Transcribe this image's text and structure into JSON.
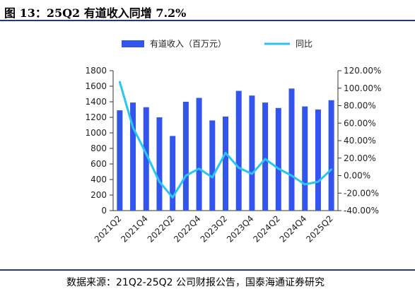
{
  "header": {
    "title": "图 13：25Q2 有道收入同增 7.2%"
  },
  "footer": {
    "source": "数据来源：21Q2-25Q2 公司财报公告，国泰海通证券研究"
  },
  "colors": {
    "bar": "#3355ee",
    "line": "#29c6f4",
    "axis": "#333333",
    "rule": "#1f3b73"
  },
  "chart_data": {
    "type": "bar",
    "categories": [
      "2021Q2",
      "2021Q3",
      "2021Q4",
      "2022Q1",
      "2022Q2",
      "2022Q3",
      "2022Q4",
      "2023Q1",
      "2023Q2",
      "2023Q3",
      "2023Q4",
      "2024Q1",
      "2024Q2",
      "2024Q3",
      "2024Q4",
      "2025Q1",
      "2025Q2"
    ],
    "x_tick_labels": [
      "2021Q2",
      "2021Q4",
      "2022Q2",
      "2022Q4",
      "2023Q2",
      "2023Q4",
      "2024Q2",
      "2024Q4",
      "2025Q2"
    ],
    "series": [
      {
        "name": "有道收入（百万元）",
        "type": "bar",
        "axis": "left",
        "values": [
          1290,
          1390,
          1330,
          1200,
          960,
          1400,
          1450,
          1160,
          1210,
          1540,
          1480,
          1390,
          1320,
          1570,
          1340,
          1300,
          1420
        ]
      },
      {
        "name": "同比",
        "type": "line",
        "axis": "right",
        "values": [
          107,
          55,
          25,
          -7,
          -25,
          0,
          8,
          -2,
          26,
          9,
          2,
          19,
          8,
          0,
          -10,
          -7,
          7
        ]
      }
    ],
    "left_ylim": [
      0,
      1800
    ],
    "left_yticks": [
      0,
      200,
      400,
      600,
      800,
      1000,
      1200,
      1400,
      1600,
      1800
    ],
    "right_ylim": [
      -40,
      120
    ],
    "right_yticks": [
      "-40.00%",
      "-20.00%",
      "0.00%",
      "20.00%",
      "40.00%",
      "60.00%",
      "80.00%",
      "100.00%",
      "120.00%"
    ],
    "legend_position": "top",
    "grid": false
  }
}
